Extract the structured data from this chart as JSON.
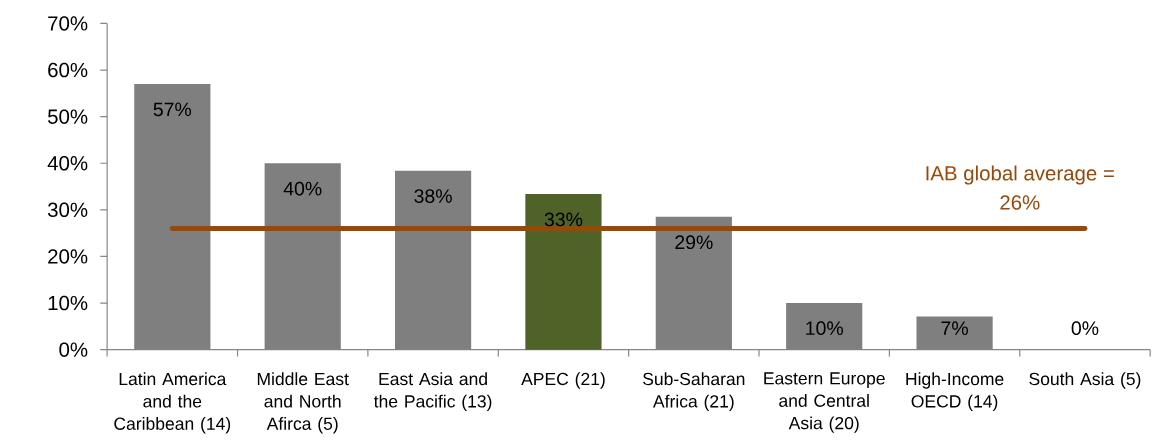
{
  "chart_data": {
    "type": "bar",
    "categories": [
      "Latin America and the Caribbean (14)",
      "Middle East and North Afirca (5)",
      "East Asia and the Pacific (13)",
      "APEC (21)",
      "Sub-Saharan Africa (21)",
      "Eastern Europe and Central Asia (20)",
      "High-Income OECD (14)",
      "South Asia (5)"
    ],
    "values": [
      57,
      40,
      38.4,
      33.4,
      28.5,
      10,
      7.1,
      0
    ],
    "value_labels": [
      "57%",
      "40%",
      "38%",
      "33%",
      "29%",
      "10%",
      "7%",
      "0%"
    ],
    "colors": [
      "#7f7f7f",
      "#7f7f7f",
      "#7f7f7f",
      "#4f6228",
      "#7f7f7f",
      "#7f7f7f",
      "#7f7f7f",
      "#7f7f7f"
    ],
    "ylim": [
      0,
      70
    ],
    "yticks": [
      {
        "value": 0,
        "label": "0%"
      },
      {
        "value": 10,
        "label": "10%"
      },
      {
        "value": 20,
        "label": "20%"
      },
      {
        "value": 30,
        "label": "30%"
      },
      {
        "value": 40,
        "label": "40%"
      },
      {
        "value": 50,
        "label": "50%"
      },
      {
        "value": 60,
        "label": "60%"
      },
      {
        "value": 70,
        "label": "70%"
      }
    ],
    "ref_lines": [
      {
        "axis": "y",
        "value": 26,
        "label": "IAB global average = 26%",
        "color": "#984807"
      }
    ]
  }
}
